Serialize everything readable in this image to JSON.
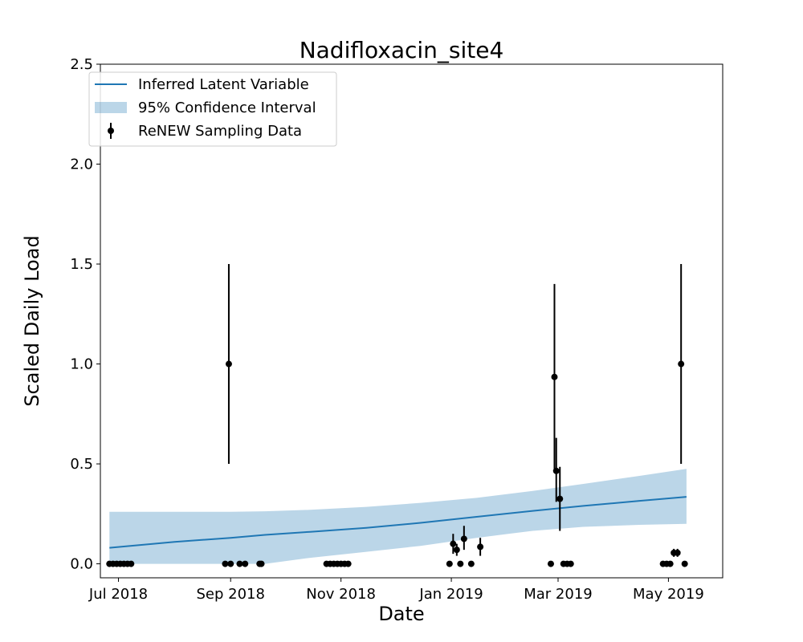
{
  "chart_data": {
    "type": "line",
    "title": "Nadifloxacin_site4",
    "xlabel": "Date",
    "ylabel": "Scaled Daily Load",
    "xlim": [
      "2018-06-21",
      "2019-05-31"
    ],
    "ylim": [
      -0.07,
      2.5
    ],
    "grid": false,
    "legend_position": "top-left",
    "x_ticks": [
      {
        "date": "2018-07-01",
        "label": "Jul 2018"
      },
      {
        "date": "2018-09-01",
        "label": "Sep 2018"
      },
      {
        "date": "2018-11-01",
        "label": "Nov 2018"
      },
      {
        "date": "2019-01-01",
        "label": "Jan 2019"
      },
      {
        "date": "2019-03-01",
        "label": "Mar 2019"
      },
      {
        "date": "2019-05-01",
        "label": "May 2019"
      }
    ],
    "y_ticks": [
      {
        "value": 0.0,
        "label": "0.0"
      },
      {
        "value": 0.5,
        "label": "0.5"
      },
      {
        "value": 1.0,
        "label": "1.0"
      },
      {
        "value": 1.5,
        "label": "1.5"
      },
      {
        "value": 2.0,
        "label": "2.0"
      },
      {
        "value": 2.5,
        "label": "2.5"
      }
    ],
    "legend": [
      {
        "label": "Inferred Latent Variable",
        "kind": "line"
      },
      {
        "label": "95% Confidence Interval",
        "kind": "band"
      },
      {
        "label": "ReNEW Sampling Data",
        "kind": "errorbar"
      }
    ],
    "colors": {
      "line": "#1f77b4",
      "band": "#1f77b4",
      "band_opacity": 0.3,
      "points": "#000000"
    },
    "latent": {
      "name": "Inferred Latent Variable",
      "points": [
        {
          "date": "2018-06-26",
          "mean": 0.08,
          "lower": 0.0,
          "upper": 0.26
        },
        {
          "date": "2018-08-01",
          "mean": 0.11,
          "lower": 0.0,
          "upper": 0.26
        },
        {
          "date": "2018-09-01",
          "mean": 0.13,
          "lower": 0.0,
          "upper": 0.26
        },
        {
          "date": "2018-09-20",
          "mean": 0.145,
          "lower": 0.0,
          "upper": 0.263
        },
        {
          "date": "2018-10-15",
          "mean": 0.16,
          "lower": 0.03,
          "upper": 0.27
        },
        {
          "date": "2018-11-15",
          "mean": 0.18,
          "lower": 0.06,
          "upper": 0.285
        },
        {
          "date": "2018-12-15",
          "mean": 0.205,
          "lower": 0.09,
          "upper": 0.305
        },
        {
          "date": "2019-01-15",
          "mean": 0.235,
          "lower": 0.13,
          "upper": 0.33
        },
        {
          "date": "2019-02-15",
          "mean": 0.265,
          "lower": 0.165,
          "upper": 0.365
        },
        {
          "date": "2019-03-15",
          "mean": 0.29,
          "lower": 0.185,
          "upper": 0.4
        },
        {
          "date": "2019-04-15",
          "mean": 0.315,
          "lower": 0.195,
          "upper": 0.44
        },
        {
          "date": "2019-05-11",
          "mean": 0.335,
          "lower": 0.2,
          "upper": 0.475
        }
      ]
    },
    "samples": {
      "name": "ReNEW Sampling Data",
      "points": [
        {
          "date": "2018-06-26",
          "y": 0.0
        },
        {
          "date": "2018-06-28",
          "y": 0.0
        },
        {
          "date": "2018-06-30",
          "y": 0.0
        },
        {
          "date": "2018-07-02",
          "y": 0.0
        },
        {
          "date": "2018-07-04",
          "y": 0.0
        },
        {
          "date": "2018-07-06",
          "y": 0.0
        },
        {
          "date": "2018-07-08",
          "y": 0.0
        },
        {
          "date": "2018-08-29",
          "y": 0.0
        },
        {
          "date": "2018-08-31",
          "y": 1.0,
          "low": 0.5,
          "high": 1.5
        },
        {
          "date": "2018-09-01",
          "y": 0.0
        },
        {
          "date": "2018-09-06",
          "y": 0.0
        },
        {
          "date": "2018-09-09",
          "y": 0.0
        },
        {
          "date": "2018-09-17",
          "y": 0.0
        },
        {
          "date": "2018-09-18",
          "y": 0.0
        },
        {
          "date": "2018-10-24",
          "y": 0.0
        },
        {
          "date": "2018-10-26",
          "y": 0.0
        },
        {
          "date": "2018-10-28",
          "y": 0.0
        },
        {
          "date": "2018-10-30",
          "y": 0.0
        },
        {
          "date": "2018-11-01",
          "y": 0.0
        },
        {
          "date": "2018-11-03",
          "y": 0.0
        },
        {
          "date": "2018-11-05",
          "y": 0.0
        },
        {
          "date": "2018-12-31",
          "y": 0.0
        },
        {
          "date": "2019-01-02",
          "y": 0.1,
          "low": 0.05,
          "high": 0.15
        },
        {
          "date": "2019-01-04",
          "y": 0.07,
          "low": 0.04,
          "high": 0.1
        },
        {
          "date": "2019-01-06",
          "y": 0.0
        },
        {
          "date": "2019-01-08",
          "y": 0.125,
          "low": 0.07,
          "high": 0.19
        },
        {
          "date": "2019-01-12",
          "y": 0.0
        },
        {
          "date": "2019-01-17",
          "y": 0.085,
          "low": 0.04,
          "high": 0.13
        },
        {
          "date": "2019-02-25",
          "y": 0.0
        },
        {
          "date": "2019-02-27",
          "y": 0.935,
          "low": 0.47,
          "high": 1.4
        },
        {
          "date": "2019-02-28",
          "y": 0.465,
          "low": 0.31,
          "high": 0.63
        },
        {
          "date": "2019-03-02",
          "y": 0.325,
          "low": 0.165,
          "high": 0.485
        },
        {
          "date": "2019-03-04",
          "y": 0.0
        },
        {
          "date": "2019-03-06",
          "y": 0.0
        },
        {
          "date": "2019-03-08",
          "y": 0.0
        },
        {
          "date": "2019-04-28",
          "y": 0.0
        },
        {
          "date": "2019-04-30",
          "y": 0.0
        },
        {
          "date": "2019-05-02",
          "y": 0.0
        },
        {
          "date": "2019-05-04",
          "y": 0.055,
          "low": 0.035,
          "high": 0.075
        },
        {
          "date": "2019-05-06",
          "y": 0.055,
          "low": 0.035,
          "high": 0.075
        },
        {
          "date": "2019-05-08",
          "y": 1.0,
          "low": 0.5,
          "high": 1.5
        },
        {
          "date": "2019-05-10",
          "y": 0.0
        }
      ]
    }
  }
}
